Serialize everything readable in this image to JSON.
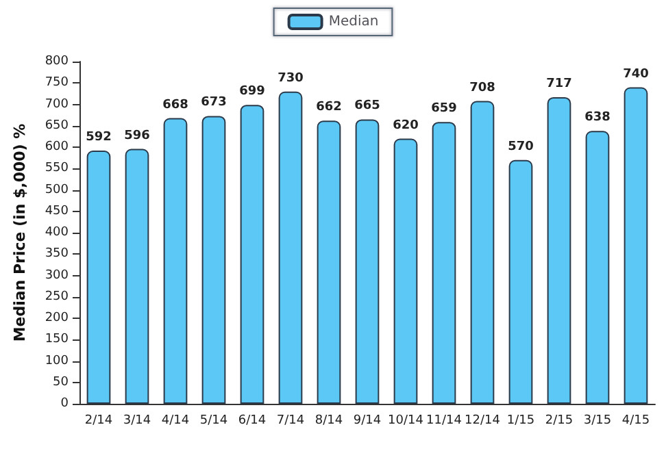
{
  "chart_data": {
    "type": "bar",
    "ylabel": "Median Price (in $,000) %",
    "categories": [
      "2/14",
      "3/14",
      "4/14",
      "5/14",
      "6/14",
      "7/14",
      "8/14",
      "9/14",
      "10/14",
      "11/14",
      "12/14",
      "1/15",
      "2/15",
      "3/15",
      "4/15"
    ],
    "series": [
      {
        "name": "Median",
        "color": "#5bc8f5",
        "values": [
          592,
          596,
          668,
          673,
          699,
          730,
          662,
          665,
          620,
          659,
          708,
          570,
          717,
          638,
          740
        ]
      }
    ],
    "ylim": [
      0,
      800
    ],
    "yticks": [
      0,
      50,
      100,
      150,
      200,
      250,
      300,
      350,
      400,
      450,
      500,
      550,
      600,
      650,
      700,
      750,
      800
    ],
    "data_labels": true,
    "grid": false,
    "legend": "top"
  }
}
